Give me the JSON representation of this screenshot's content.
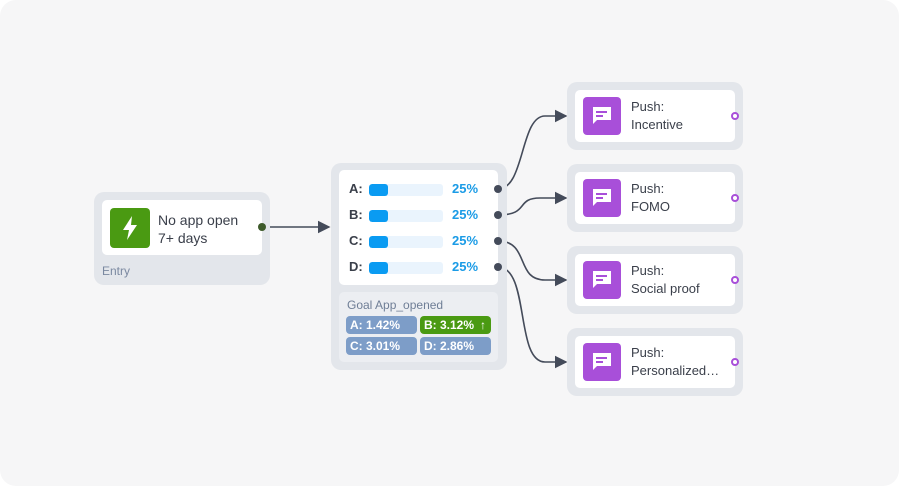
{
  "entry": {
    "title_line1": "No app open",
    "title_line2": "7+ days",
    "label": "Entry",
    "icon": "lightning-icon",
    "color": "#4a9a12"
  },
  "split": {
    "variants": [
      {
        "label": "A:",
        "percent": "25%",
        "value": 25
      },
      {
        "label": "B:",
        "percent": "25%",
        "value": 25
      },
      {
        "label": "C:",
        "percent": "25%",
        "value": 25
      },
      {
        "label": "D:",
        "percent": "25%",
        "value": 25
      }
    ],
    "goal_label": "Goal App_opened",
    "goal_results": [
      {
        "text": "A: 1.42%",
        "winner": false
      },
      {
        "text": "B: 3.12%",
        "winner": true,
        "arrow": "↑"
      },
      {
        "text": "C: 3.01%",
        "winner": false
      },
      {
        "text": "D: 2.86%",
        "winner": false
      }
    ],
    "colors": {
      "bar": "#0a9bf2",
      "chip": "#7d9dc8",
      "winner": "#4a9a12"
    }
  },
  "push_nodes": [
    {
      "line1": "Push:",
      "line2": "Incentive"
    },
    {
      "line1": "Push:",
      "line2": "FOMO"
    },
    {
      "line1": "Push:",
      "line2": "Social proof"
    },
    {
      "line1": "Push:",
      "line2": "Personalized…"
    }
  ],
  "push_icon": "message-icon",
  "push_color": "#a84fd9"
}
